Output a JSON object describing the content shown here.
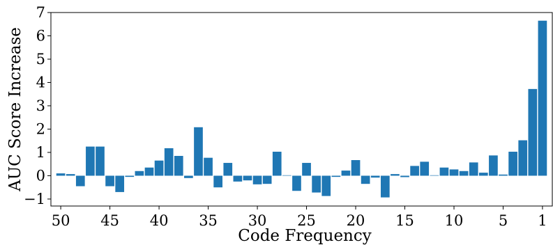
{
  "chart_data": {
    "type": "bar",
    "title": "",
    "xlabel": "Code Frequency",
    "ylabel": "AUC Score Increase",
    "color": "#1f77b4",
    "xlim": [
      51.0,
      0.0
    ],
    "ylim": [
      -1.3,
      7.0
    ],
    "xticks": [
      50,
      45,
      40,
      35,
      30,
      25,
      20,
      15,
      10,
      5,
      1
    ],
    "yticks": [
      -1,
      0,
      1,
      2,
      3,
      4,
      5,
      6,
      7
    ],
    "ytick_labels": [
      "−1",
      "0",
      "1",
      "2",
      "3",
      "4",
      "5",
      "6",
      "7"
    ],
    "grid": false,
    "x": [
      50,
      49,
      48,
      47,
      46,
      45,
      44,
      43,
      42,
      41,
      40,
      39,
      38,
      37,
      36,
      35,
      34,
      33,
      32,
      31,
      30,
      29,
      28,
      27,
      26,
      25,
      24,
      23,
      22,
      21,
      20,
      19,
      18,
      17,
      16,
      15,
      14,
      13,
      12,
      11,
      10,
      9,
      8,
      7,
      6,
      5,
      4,
      3,
      2,
      1
    ],
    "values": [
      0.1,
      0.07,
      -0.45,
      1.25,
      1.25,
      -0.45,
      -0.7,
      -0.05,
      0.2,
      0.35,
      0.65,
      1.18,
      0.85,
      -0.1,
      2.08,
      0.77,
      -0.5,
      0.55,
      -0.25,
      -0.2,
      -0.37,
      -0.35,
      1.03,
      0.02,
      -0.65,
      0.55,
      -0.72,
      -0.87,
      -0.05,
      0.22,
      0.67,
      -0.35,
      -0.08,
      -0.93,
      0.07,
      -0.06,
      0.42,
      0.6,
      0.02,
      0.35,
      0.27,
      0.2,
      0.57,
      0.13,
      0.87,
      0.05,
      1.03,
      1.52,
      3.72,
      6.65
    ]
  }
}
